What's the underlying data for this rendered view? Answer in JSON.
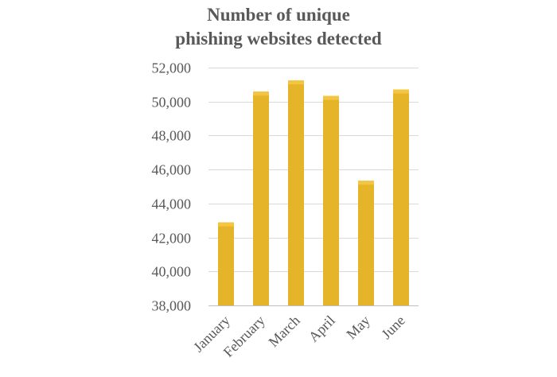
{
  "chart_data": {
    "type": "bar",
    "title_lines": [
      "Number of unique",
      "phishing websites detected"
    ],
    "categories": [
      "January",
      "February",
      "March",
      "April",
      "May",
      "June"
    ],
    "values": [
      42890,
      50590,
      51250,
      50330,
      45340,
      50710
    ],
    "ylim": [
      38000,
      52000
    ],
    "yticks": [
      38000,
      40000,
      42000,
      44000,
      46000,
      48000,
      50000,
      52000
    ],
    "ytick_labels": [
      "38,000",
      "40,000",
      "42,000",
      "44,000",
      "46,000",
      "48,000",
      "50,000",
      "52,000"
    ],
    "grid": true,
    "legend": "none",
    "xlabel": "",
    "ylabel": "",
    "bar_color": "#E6B429",
    "bar_top_color": "#F2C642",
    "grid_color": "#D9D9D9",
    "text_color": "#595959"
  }
}
